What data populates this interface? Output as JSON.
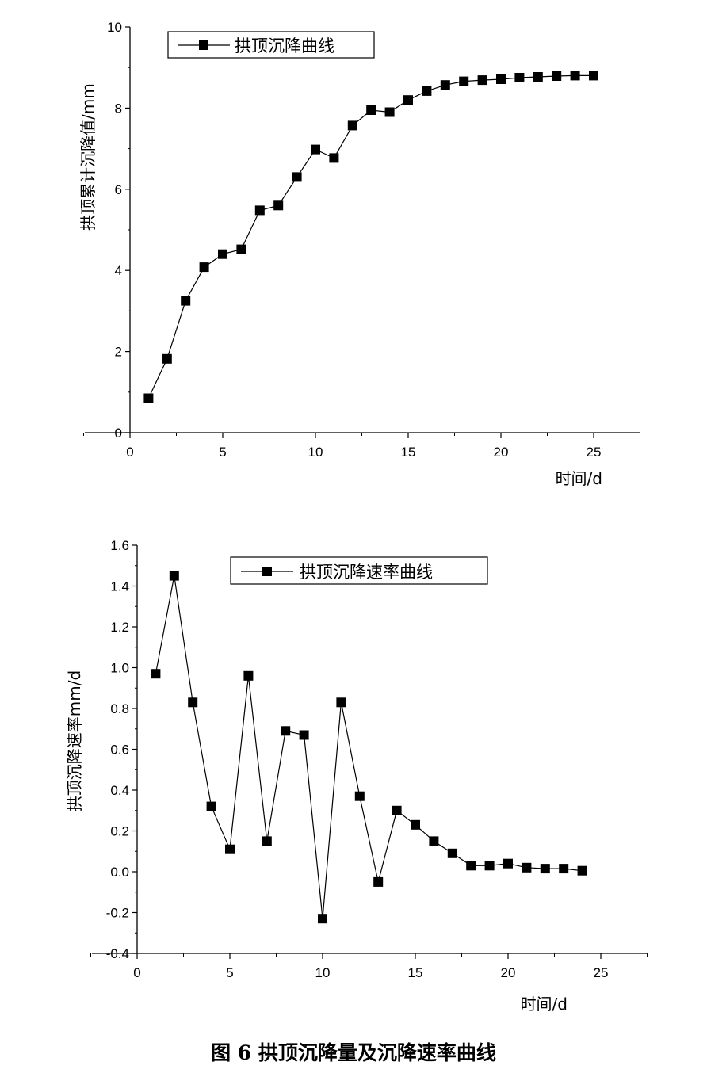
{
  "caption": "图 6  拱顶沉降量及沉降速率曲线",
  "chart_data": [
    {
      "type": "line",
      "legend_placement": "top-left",
      "grid": false,
      "xlabel": "时间/d",
      "ylabel": "拱顶累计沉降值/mm",
      "xlim": [
        -2.5,
        28
      ],
      "ylim": [
        0,
        10
      ],
      "x_ticks": [
        "0",
        "5",
        "10",
        "15",
        "20",
        "25"
      ],
      "y_ticks": [
        "0",
        "2",
        "4",
        "6",
        "8",
        "10"
      ],
      "series": [
        {
          "name": "拱顶沉降曲线",
          "marker": "square",
          "color": "#000000",
          "x": [
            1,
            2,
            3,
            4,
            5,
            6,
            7,
            8,
            9,
            10,
            11,
            12,
            13,
            14,
            15,
            16,
            17,
            18,
            19,
            20,
            21,
            22,
            23,
            24,
            25
          ],
          "y": [
            0.85,
            1.82,
            3.25,
            4.08,
            4.4,
            4.52,
            5.48,
            5.6,
            6.3,
            6.98,
            6.77,
            7.57,
            7.95,
            7.9,
            8.2,
            8.42,
            8.57,
            8.66,
            8.69,
            8.71,
            8.75,
            8.77,
            8.79,
            8.8,
            8.8
          ]
        }
      ]
    },
    {
      "type": "line",
      "legend_placement": "top-center",
      "grid": false,
      "xlabel": "时间/d",
      "ylabel": "拱顶沉降速率mm/d",
      "xlim": [
        0,
        28
      ],
      "ylim": [
        -0.4,
        1.6
      ],
      "x_ticks": [
        "0",
        "5",
        "10",
        "15",
        "20",
        "25"
      ],
      "y_ticks": [
        "-0.4",
        "-0.2",
        "0.0",
        "0.2",
        "0.4",
        "0.6",
        "0.8",
        "1.0",
        "1.2",
        "1.4",
        "1.6"
      ],
      "series": [
        {
          "name": "拱顶沉降速率曲线",
          "marker": "square",
          "color": "#000000",
          "x": [
            1,
            2,
            3,
            4,
            5,
            6,
            7,
            8,
            9,
            10,
            11,
            12,
            13,
            14,
            15,
            16,
            17,
            18,
            19,
            20,
            21,
            22,
            23,
            24
          ],
          "y": [
            0.97,
            1.45,
            0.83,
            0.32,
            0.11,
            0.96,
            0.15,
            0.69,
            0.67,
            -0.23,
            0.83,
            0.37,
            -0.05,
            0.3,
            0.23,
            0.15,
            0.09,
            0.03,
            0.03,
            0.04,
            0.02,
            0.015,
            0.015,
            0.005
          ]
        }
      ]
    }
  ]
}
